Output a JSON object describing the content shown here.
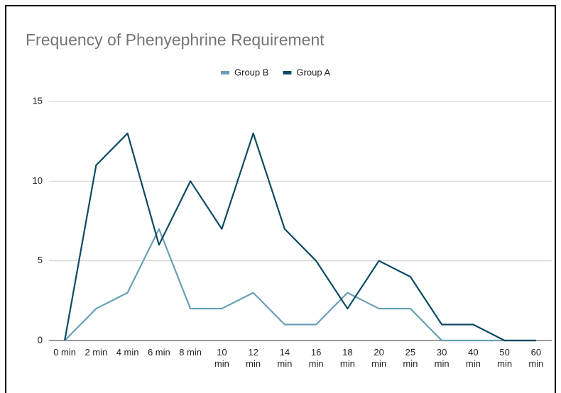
{
  "chart_data": {
    "type": "line",
    "title": "Frequency of Phenyephrine Requirement",
    "categories": [
      "0 min",
      "2 min",
      "4 min",
      "6 min",
      "8 min",
      "10 min",
      "12 min",
      "14 min",
      "16 min",
      "18 min",
      "20 min",
      "25 min",
      "30 min",
      "40 min",
      "50 min",
      "60 min"
    ],
    "series": [
      {
        "name": "Group B",
        "color": "#6a9fb5",
        "values": [
          0,
          2,
          3,
          7,
          2,
          2,
          3,
          1,
          1,
          3,
          2,
          2,
          0,
          0,
          0,
          0
        ]
      },
      {
        "name": "Group A",
        "color": "#0d4a63",
        "values": [
          0,
          11,
          13,
          6,
          10,
          7,
          13,
          7,
          5,
          2,
          5,
          4,
          1,
          1,
          0,
          0
        ]
      }
    ],
    "ylim": [
      0,
      15
    ],
    "yticks": [
      0,
      5,
      10,
      15
    ],
    "grid": true,
    "legend": "top"
  }
}
